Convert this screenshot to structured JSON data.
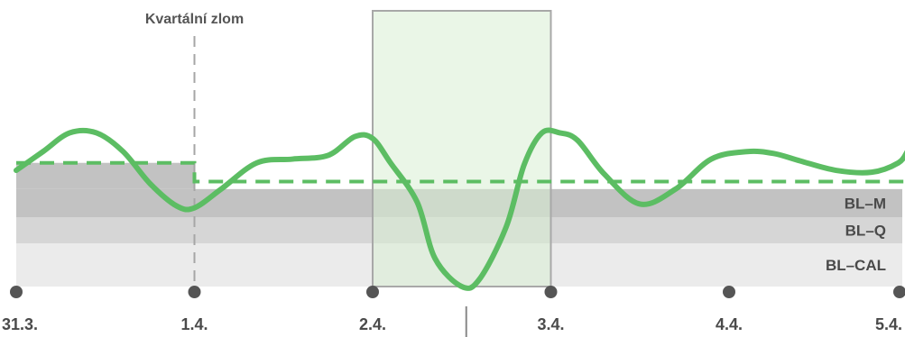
{
  "chart_data": {
    "type": "line",
    "title": "",
    "xlabel": "",
    "ylabel": "",
    "x_ticks": [
      "31.3.",
      "1.4.",
      "2.4.",
      "3.4.",
      "4.4.",
      "5.4."
    ],
    "xlim": [
      0,
      5
    ],
    "ylim": [
      0,
      1
    ],
    "grid": false,
    "bands": [
      {
        "label": "BL–CAL",
        "from": 0.0,
        "to": 0.23,
        "color": "#ebebeb"
      },
      {
        "label": "BL–Q",
        "from": 0.23,
        "to": 0.37,
        "color": "#d6d6d6"
      },
      {
        "label": "BL–M",
        "from": 0.37,
        "to": 0.52,
        "color": "#c2c2c2"
      },
      {
        "label": "",
        "from": 0.52,
        "to": 0.66,
        "color": "#c2c2c2",
        "x_to": 1.0
      }
    ],
    "series": [
      {
        "style": "solid",
        "color": "#5cbd63",
        "x": [
          0,
          0.15,
          0.3,
          0.45,
          0.6,
          0.75,
          0.9,
          1.0,
          1.15,
          1.35,
          1.55,
          1.75,
          1.9,
          2.0,
          2.1,
          2.25,
          2.35,
          2.5,
          2.6,
          2.75,
          2.85,
          2.95,
          3.05,
          3.15,
          3.3,
          3.5,
          3.7,
          3.9,
          4.1,
          4.25,
          4.4,
          4.6,
          4.8,
          4.95,
          5.0
        ],
        "y": [
          0.62,
          0.72,
          0.82,
          0.82,
          0.72,
          0.55,
          0.43,
          0.42,
          0.52,
          0.66,
          0.68,
          0.7,
          0.8,
          0.79,
          0.66,
          0.45,
          0.15,
          0.0,
          0.04,
          0.32,
          0.65,
          0.82,
          0.82,
          0.78,
          0.6,
          0.44,
          0.52,
          0.68,
          0.72,
          0.71,
          0.67,
          0.62,
          0.61,
          0.66,
          0.72
        ]
      },
      {
        "style": "dashed",
        "color": "#5cbd63",
        "x": [
          0,
          1.0,
          1.0,
          5.0
        ],
        "y": [
          0.66,
          0.66,
          0.56,
          0.56
        ]
      }
    ],
    "vertical_marker": {
      "x": 1.0,
      "label": "Kvartální zlom"
    },
    "highlight_range": {
      "x_from": 2.0,
      "x_to": 3.0,
      "color": "#d8efd4"
    }
  }
}
